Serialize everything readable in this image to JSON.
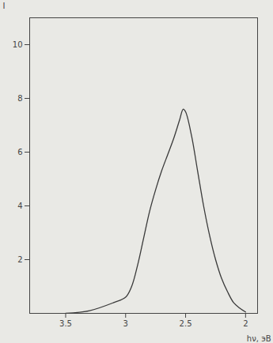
{
  "chart_data": {
    "type": "line",
    "xlabel": "hν, эВ",
    "ylabel": "I",
    "x": [
      3.5,
      3.3,
      3.1,
      3.0,
      2.95,
      2.9,
      2.85,
      2.8,
      2.75,
      2.7,
      2.65,
      2.6,
      2.55,
      2.52,
      2.5,
      2.45,
      2.4,
      2.35,
      2.3,
      2.25,
      2.2,
      2.15,
      2.1,
      2.05,
      2.0
    ],
    "values": [
      0,
      0.1,
      0.4,
      0.6,
      1.0,
      1.8,
      2.8,
      3.8,
      4.6,
      5.3,
      5.9,
      6.5,
      7.2,
      7.6,
      7.5,
      6.6,
      5.3,
      4.0,
      2.9,
      2.0,
      1.3,
      0.8,
      0.4,
      0.2,
      0.05
    ],
    "xlim": [
      3.8,
      1.9
    ],
    "ylim": [
      0,
      11
    ],
    "xticks": [
      3.5,
      3,
      2.5,
      2
    ],
    "yticks": [
      2,
      4,
      6,
      8,
      10
    ],
    "color": "#3a3a3a"
  }
}
